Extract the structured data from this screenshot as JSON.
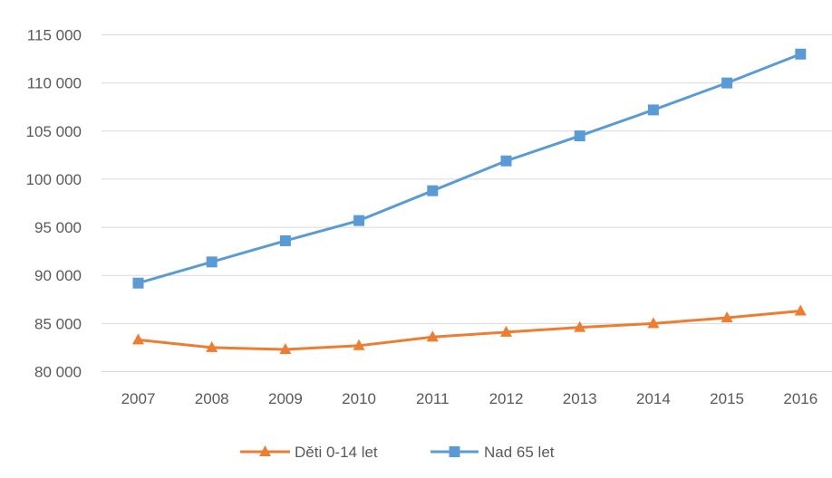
{
  "chart_data": {
    "type": "line",
    "categories": [
      "2007",
      "2008",
      "2009",
      "2010",
      "2011",
      "2012",
      "2013",
      "2014",
      "2015",
      "2016"
    ],
    "series": [
      {
        "name": "Děti 0-14 let",
        "color": "#ED7D31",
        "marker": "triangle",
        "values": [
          83300,
          82500,
          82300,
          82700,
          83600,
          84100,
          84600,
          85000,
          85600,
          86300
        ]
      },
      {
        "name": "Nad 65 let",
        "color": "#5B9BD5",
        "marker": "square",
        "values": [
          89200,
          91400,
          93600,
          95700,
          98800,
          101900,
          104500,
          107200,
          110000,
          113000
        ]
      }
    ],
    "ylim": [
      80000,
      115000
    ],
    "yticks": [
      80000,
      85000,
      90000,
      95000,
      100000,
      105000,
      110000,
      115000
    ],
    "ytick_labels": [
      "80 000",
      "85 000",
      "90 000",
      "95 000",
      "100 000",
      "105 000",
      "110 000",
      "115 000"
    ],
    "grid": true,
    "legend_position": "bottom",
    "gridline_color": "#d9d9d9",
    "text_color": "#595959"
  }
}
